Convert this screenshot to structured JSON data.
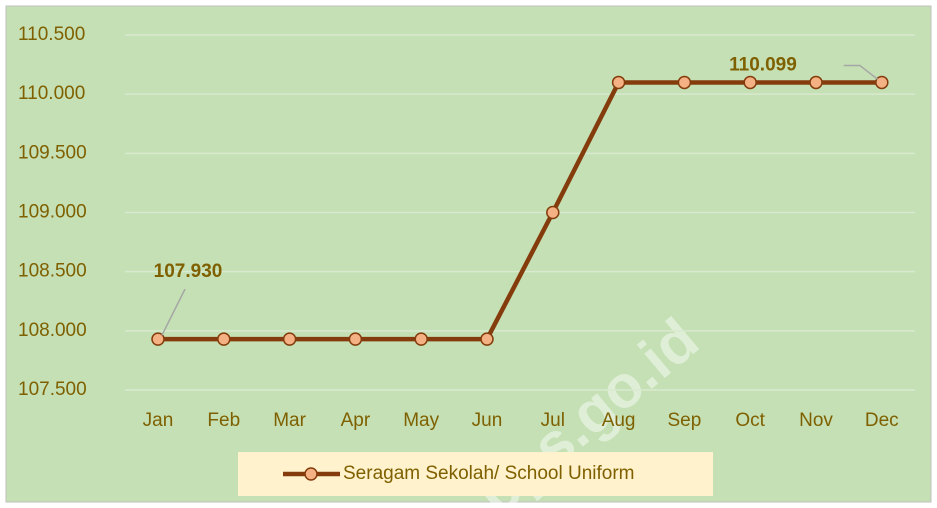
{
  "chart_data": {
    "type": "line",
    "categories": [
      "Jan",
      "Feb",
      "Mar",
      "Apr",
      "May",
      "Jun",
      "Jul",
      "Aug",
      "Sep",
      "Oct",
      "Nov",
      "Dec"
    ],
    "series": [
      {
        "name": "Seragam Sekolah/ School Uniform",
        "color": "#843c0c",
        "marker_color": "#f4b183",
        "values": [
          107.93,
          107.93,
          107.93,
          107.93,
          107.93,
          107.93,
          109.0,
          110.099,
          110.099,
          110.099,
          110.099,
          110.099
        ],
        "value_labels": [
          "107.930",
          null,
          null,
          null,
          null,
          null,
          null,
          null,
          null,
          null,
          null,
          "110.099"
        ]
      }
    ],
    "ylim": [
      107.5,
      110.5
    ],
    "yticks": [
      {
        "value": 107.5,
        "label": "107.500"
      },
      {
        "value": 108,
        "label": "108.000"
      },
      {
        "value": 108.5,
        "label": "108.500"
      },
      {
        "value": 109,
        "label": "109.000"
      },
      {
        "value": 109.5,
        "label": "109.500"
      },
      {
        "value": 110,
        "label": "110.000"
      },
      {
        "value": 110.5,
        "label": "110.500"
      }
    ],
    "grid": true,
    "legend": "bottom",
    "background": "#c5e0b4",
    "watermark": "bps.go.id"
  }
}
